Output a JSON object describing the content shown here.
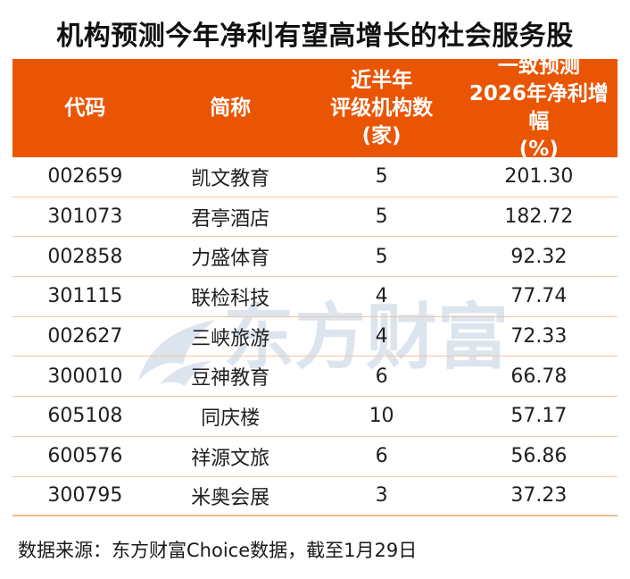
{
  "title": "机构预测今年净利有望高增长的社会服务股",
  "table": {
    "headers": [
      {
        "lines": [
          "代码"
        ]
      },
      {
        "lines": [
          "简称"
        ]
      },
      {
        "lines": [
          "近半年",
          "评级机构数",
          "(家)"
        ]
      },
      {
        "lines": [
          "一致预测",
          "2026年净利增幅",
          "(%)"
        ]
      }
    ],
    "rows": [
      [
        "002659",
        "凯文教育",
        "5",
        "201.30"
      ],
      [
        "301073",
        "君亭酒店",
        "5",
        "182.72"
      ],
      [
        "002858",
        "力盛体育",
        "5",
        "92.32"
      ],
      [
        "301115",
        "联检科技",
        "4",
        "77.74"
      ],
      [
        "002627",
        "三峡旅游",
        "4",
        "72.33"
      ],
      [
        "300010",
        "豆神教育",
        "6",
        "66.78"
      ],
      [
        "605108",
        "同庆楼",
        "10",
        "57.17"
      ],
      [
        "600576",
        "祥源文旅",
        "6",
        "56.86"
      ],
      [
        "300795",
        "米奥会展",
        "3",
        "37.23"
      ]
    ]
  },
  "footer": "数据来源：东方财富Choice数据，截至1月29日",
  "watermark": {
    "text": "东方财富",
    "icon": "eastmoney-leaf-logo"
  },
  "colors": {
    "header_bg": "#EA5504",
    "header_text": "#FFFFFF",
    "row_divider": "#F4C5A2",
    "title_text": "#111111",
    "body_text": "#1F1F1F",
    "watermark": "#DCE4EE",
    "background": "#FFFFFF"
  },
  "chart_data": {
    "type": "table",
    "title": "机构预测今年净利有望高增长的社会服务股",
    "columns": [
      "代码",
      "简称",
      "近半年评级机构数(家)",
      "一致预测2026年净利增幅(%)"
    ],
    "rows": [
      {
        "code": "002659",
        "name": "凯文教育",
        "rating_orgs": 5,
        "forecast_growth_pct": 201.3
      },
      {
        "code": "301073",
        "name": "君亭酒店",
        "rating_orgs": 5,
        "forecast_growth_pct": 182.72
      },
      {
        "code": "002858",
        "name": "力盛体育",
        "rating_orgs": 5,
        "forecast_growth_pct": 92.32
      },
      {
        "code": "301115",
        "name": "联检科技",
        "rating_orgs": 4,
        "forecast_growth_pct": 77.74
      },
      {
        "code": "002627",
        "name": "三峡旅游",
        "rating_orgs": 4,
        "forecast_growth_pct": 72.33
      },
      {
        "code": "300010",
        "name": "豆神教育",
        "rating_orgs": 6,
        "forecast_growth_pct": 66.78
      },
      {
        "code": "605108",
        "name": "同庆楼",
        "rating_orgs": 10,
        "forecast_growth_pct": 57.17
      },
      {
        "code": "600576",
        "name": "祥源文旅",
        "rating_orgs": 6,
        "forecast_growth_pct": 56.86
      },
      {
        "code": "300795",
        "name": "米奥会展",
        "rating_orgs": 3,
        "forecast_growth_pct": 37.23
      }
    ],
    "source_note": "数据来源：东方财富Choice数据，截至1月29日"
  }
}
